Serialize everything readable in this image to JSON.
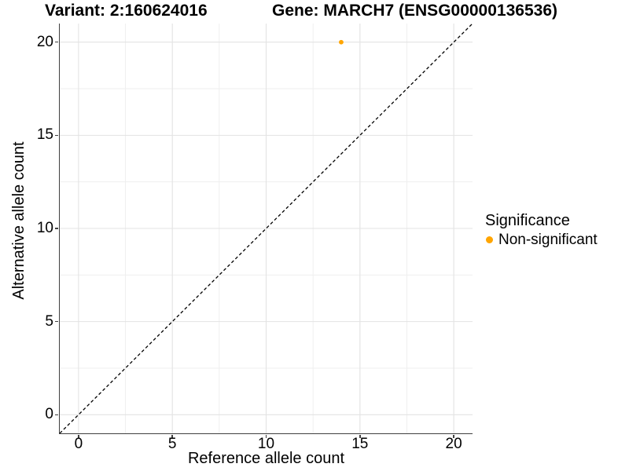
{
  "chart_data": {
    "type": "scatter",
    "title_left": "Variant: 2:160624016",
    "title_right": "Gene: MARCH7 (ENSG00000136536)",
    "xlabel": "Reference allele count",
    "ylabel": "Alternative allele count",
    "xlim": [
      -1,
      21
    ],
    "ylim": [
      -1,
      21
    ],
    "xticks": [
      0,
      5,
      10,
      15,
      20
    ],
    "yticks": [
      0,
      5,
      10,
      15,
      20
    ],
    "minor_ticks": [
      2.5,
      7.5,
      12.5,
      17.5
    ],
    "grid": true,
    "points": [
      {
        "x": 14,
        "y": 20,
        "series": "Non-significant"
      }
    ],
    "identity_line": {
      "style": "dashed",
      "from": [
        -1,
        -1
      ],
      "to": [
        21,
        21
      ],
      "color": "#000000"
    },
    "legend": {
      "title": "Significance",
      "position": "right",
      "items": [
        {
          "label": "Non-significant",
          "color": "#FFA500"
        }
      ]
    },
    "colors": {
      "point": "#FFA500",
      "axis_line": "#404040",
      "grid_major": "#e3e3e3",
      "grid_minor": "#efefef",
      "text": "#000000"
    }
  }
}
